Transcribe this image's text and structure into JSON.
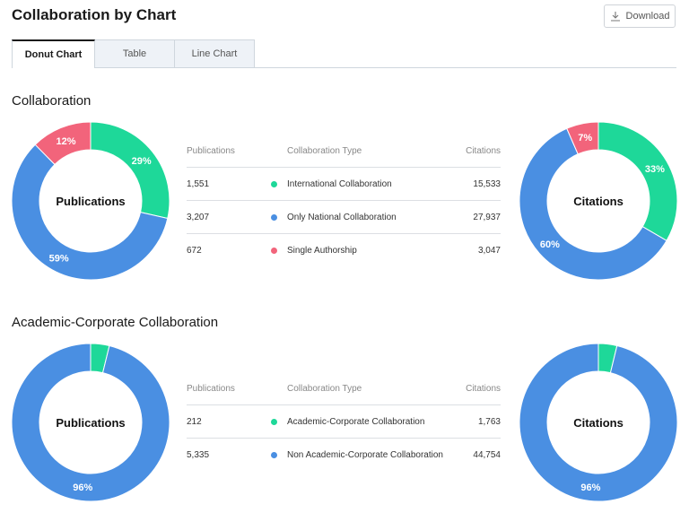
{
  "header": {
    "title": "Collaboration by Chart",
    "download_label": "Download"
  },
  "tabs": [
    {
      "label": "Donut Chart",
      "active": true
    },
    {
      "label": "Table",
      "active": false
    },
    {
      "label": "Line Chart",
      "active": false
    }
  ],
  "colors": {
    "green": "#1ed899",
    "blue": "#4a8fe2",
    "pink": "#f2647b"
  },
  "table_headers": {
    "publications": "Publications",
    "type": "Collaboration Type",
    "citations": "Citations"
  },
  "sections": [
    {
      "title": "Collaboration",
      "left_center_label": "Publications",
      "right_center_label": "Citations",
      "rows": [
        {
          "publications": "1,551",
          "type": "International Collaboration",
          "citations": "15,533",
          "color": "#1ed899"
        },
        {
          "publications": "3,207",
          "type": "Only National Collaboration",
          "citations": "27,937",
          "color": "#4a8fe2"
        },
        {
          "publications": "672",
          "type": "Single Authorship",
          "citations": "3,047",
          "color": "#f2647b"
        }
      ]
    },
    {
      "title": "Academic-Corporate Collaboration",
      "left_center_label": "Publications",
      "right_center_label": "Citations",
      "rows": [
        {
          "publications": "212",
          "type": "Academic-Corporate Collaboration",
          "citations": "1,763",
          "color": "#1ed899"
        },
        {
          "publications": "5,335",
          "type": "Non Academic-Corporate Collaboration",
          "citations": "44,754",
          "color": "#4a8fe2"
        }
      ]
    }
  ],
  "chart_data": [
    {
      "type": "pie",
      "title": "Publications",
      "categories": [
        "International Collaboration",
        "Only National Collaboration",
        "Single Authorship"
      ],
      "values": [
        1551,
        3207,
        672
      ],
      "percent_labels": [
        "29%",
        "59%",
        "12%"
      ],
      "colors": [
        "#1ed899",
        "#4a8fe2",
        "#f2647b"
      ]
    },
    {
      "type": "pie",
      "title": "Citations",
      "categories": [
        "International Collaboration",
        "Only National Collaboration",
        "Single Authorship"
      ],
      "values": [
        15533,
        27937,
        3047
      ],
      "percent_labels": [
        "33%",
        "60%",
        "7%"
      ],
      "colors": [
        "#1ed899",
        "#4a8fe2",
        "#f2647b"
      ]
    },
    {
      "type": "pie",
      "title": "Publications",
      "categories": [
        "Academic-Corporate Collaboration",
        "Non Academic-Corporate Collaboration"
      ],
      "values": [
        212,
        5335
      ],
      "percent_labels": [
        "",
        "96%"
      ],
      "colors": [
        "#1ed899",
        "#4a8fe2"
      ]
    },
    {
      "type": "pie",
      "title": "Citations",
      "categories": [
        "Academic-Corporate Collaboration",
        "Non Academic-Corporate Collaboration"
      ],
      "values": [
        1763,
        44754
      ],
      "percent_labels": [
        "",
        "96%"
      ],
      "colors": [
        "#1ed899",
        "#4a8fe2"
      ]
    }
  ]
}
